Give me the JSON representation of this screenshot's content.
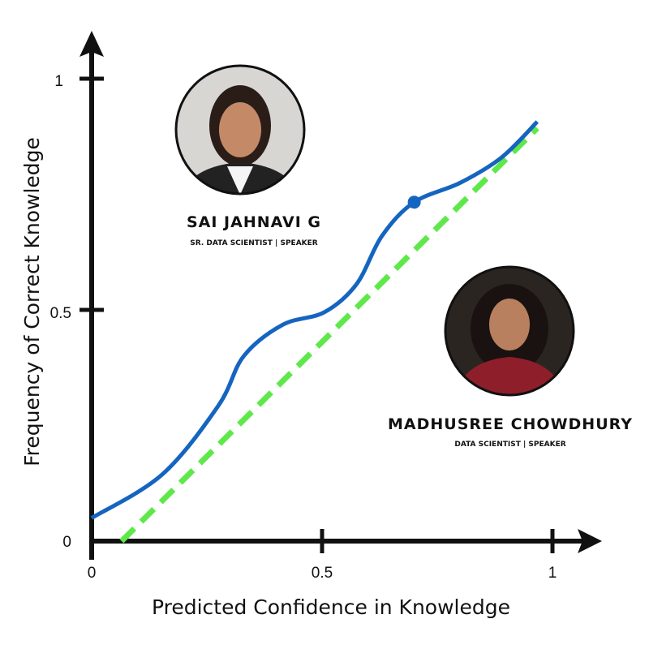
{
  "chart_data": {
    "type": "line",
    "xlabel": "Predicted Confidence in Knowledge",
    "ylabel": "Frequency of Correct Knowledge",
    "xlim": [
      0,
      1
    ],
    "ylim": [
      0,
      1
    ],
    "x_ticks": [
      "0",
      "0.5",
      "1"
    ],
    "y_ticks": [
      "0",
      "0.5",
      "1"
    ],
    "grid": false,
    "series": [
      {
        "style": "solid",
        "color": "#1565c0",
        "x": [
          0,
          0.153,
          0.275,
          0.33,
          0.415,
          0.505,
          0.575,
          0.63,
          0.7,
          0.8,
          0.89,
          0.967
        ],
        "y": [
          0.05,
          0.144,
          0.293,
          0.4,
          0.468,
          0.495,
          0.556,
          0.66,
          0.733,
          0.775,
          0.83,
          0.907
        ]
      },
      {
        "style": "dashed",
        "color": "#5ee84a",
        "x": [
          0.065,
          0.967
        ],
        "y": [
          0,
          0.893
        ]
      }
    ],
    "highlight_point": {
      "x": 0.7,
      "y": 0.733,
      "color": "#1565c0"
    }
  },
  "speakers": [
    {
      "name": "SAI JAHNAVI G",
      "role": "SR. DATA SCIENTIST | SPEAKER",
      "photo": "portrait-photo"
    },
    {
      "name": "MADHUSREE CHOWDHURY",
      "role": "DATA SCIENTIST | SPEAKER",
      "photo": "portrait-photo"
    }
  ]
}
